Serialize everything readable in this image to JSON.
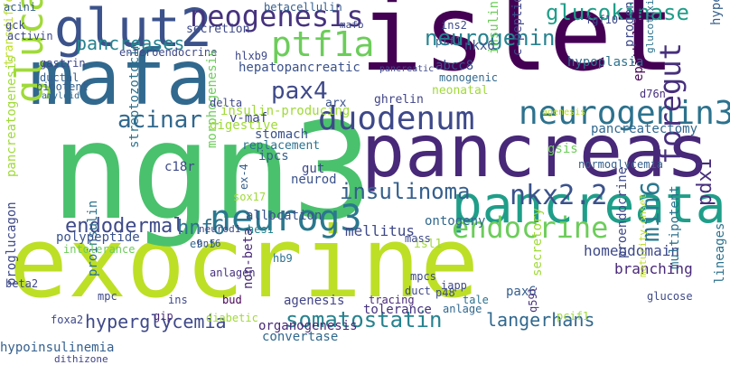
{
  "words": [
    {
      "text": "exocrine",
      "color": "#bddf26",
      "orientation": "h"
    },
    {
      "text": "ngn3",
      "color": "#4ac16d",
      "orientation": "h"
    },
    {
      "text": "islet",
      "color": "#440154",
      "orientation": "h"
    },
    {
      "text": "pancreas",
      "color": "#482878",
      "orientation": "h"
    },
    {
      "text": "mafa",
      "color": "#31688e",
      "orientation": "h"
    },
    {
      "text": "pancreata",
      "color": "#1f9e89",
      "orientation": "h"
    },
    {
      "text": "neurog3",
      "color": "#2a788e",
      "orientation": "h"
    },
    {
      "text": "glut2",
      "color": "#3b528b",
      "orientation": "h"
    },
    {
      "text": "glucagon",
      "color": "#a0da39",
      "orientation": "v"
    },
    {
      "text": "duodenum",
      "color": "#3e4989",
      "orientation": "h"
    },
    {
      "text": "neogenesis",
      "color": "#46327e",
      "orientation": "h"
    },
    {
      "text": "ptf1a",
      "color": "#6ccd5a",
      "orientation": "h"
    },
    {
      "text": "neurogenin3",
      "color": "#2c728e",
      "orientation": "h"
    },
    {
      "text": "endocrine",
      "color": "#6ccd5a",
      "orientation": "h"
    },
    {
      "text": "foregut",
      "color": "#472f7d",
      "orientation": "v"
    },
    {
      "text": "somatostatin",
      "color": "#26828e",
      "orientation": "h"
    },
    {
      "text": "insulinoma",
      "color": "#355f8d",
      "orientation": "h"
    },
    {
      "text": "nkx2.2",
      "color": "#3b528b",
      "orientation": "h"
    },
    {
      "text": "hyperglycemia",
      "color": "#3e4989",
      "orientation": "h"
    },
    {
      "text": "acinar",
      "color": "#31688e",
      "orientation": "h"
    },
    {
      "text": "endodermal",
      "color": "#3e4989",
      "orientation": "h"
    },
    {
      "text": "glucokinase",
      "color": "#1f9e89",
      "orientation": "h"
    },
    {
      "text": "pax4",
      "color": "#3e4989",
      "orientation": "h"
    },
    {
      "text": "langerhans",
      "color": "#31688e",
      "orientation": "h"
    },
    {
      "text": "neurogenin",
      "color": "#26828e",
      "orientation": "h"
    },
    {
      "text": "min6",
      "color": "#2a788e",
      "orientation": "v"
    },
    {
      "text": "hnf6",
      "color": "#2c728e",
      "orientation": "h"
    },
    {
      "text": "pancreases",
      "color": "#26828e",
      "orientation": "h"
    },
    {
      "text": "pdx1",
      "color": "#472f7d",
      "orientation": "v"
    },
    {
      "text": "pancreatectomy",
      "color": "#31688e",
      "orientation": "h"
    },
    {
      "text": "mellitus",
      "color": "#3e4989",
      "orientation": "h"
    },
    {
      "text": "organogenesis",
      "color": "#482878",
      "orientation": "h"
    },
    {
      "text": "homeodomain",
      "color": "#3e4989",
      "orientation": "h"
    },
    {
      "text": "branching",
      "color": "#482878",
      "orientation": "h"
    },
    {
      "text": "pax6",
      "color": "#355f8d",
      "orientation": "h"
    },
    {
      "text": "agenesis",
      "color": "#414487",
      "orientation": "h"
    },
    {
      "text": "insulin-producing",
      "color": "#a0da39",
      "orientation": "h"
    },
    {
      "text": "hepatopancreatic",
      "color": "#3b528b",
      "orientation": "h"
    },
    {
      "text": "enteroendocrine",
      "color": "#3e4989",
      "orientation": "h"
    },
    {
      "text": "pancreatogenesis",
      "color": "#a0da39",
      "orientation": "v"
    },
    {
      "text": "transdifferentiation",
      "color": "#bddf26",
      "orientation": "v"
    },
    {
      "text": "streptozotocin",
      "color": "#2c728e",
      "orientation": "v"
    },
    {
      "text": "morphogenesis",
      "color": "#6ccd5a",
      "orientation": "v"
    },
    {
      "text": "insulinotropic",
      "color": "#6ccd5a",
      "orientation": "v"
    },
    {
      "text": "proinsulin",
      "color": "#2c728e",
      "orientation": "v"
    },
    {
      "text": "proglucagon",
      "color": "#3e4989",
      "orientation": "v"
    },
    {
      "text": "polypeptide",
      "color": "#3b528b",
      "orientation": "h"
    },
    {
      "text": "hypoinsulinemia",
      "color": "#355f8d",
      "orientation": "h"
    },
    {
      "text": "dithizone",
      "color": "#414487",
      "orientation": "h"
    },
    {
      "text": "convertase",
      "color": "#31688e",
      "orientation": "h"
    },
    {
      "text": "tolerance",
      "color": "#46327e",
      "orientation": "h"
    },
    {
      "text": "tracing",
      "color": "#482878",
      "orientation": "h"
    },
    {
      "text": "allocation",
      "color": "#3b528b",
      "orientation": "h"
    },
    {
      "text": "ontogeny",
      "color": "#31688e",
      "orientation": "h"
    },
    {
      "text": "normoglycemia",
      "color": "#355f8d",
      "orientation": "h"
    },
    {
      "text": "c-peptide",
      "color": "#3e4989",
      "orientation": "v"
    },
    {
      "text": "progenitors",
      "color": "#3e4989",
      "orientation": "v"
    },
    {
      "text": "epithelium",
      "color": "#440154",
      "orientation": "v"
    },
    {
      "text": "glucotoxicity",
      "color": "#2c728e",
      "orientation": "v"
    },
    {
      "text": "hyperglycemic",
      "color": "#355f8d",
      "orientation": "v"
    },
    {
      "text": "lineages",
      "color": "#2c728e",
      "orientation": "v"
    },
    {
      "text": "proendocrine",
      "color": "#3e4989",
      "orientation": "v"
    },
    {
      "text": "multipotent",
      "color": "#2c728e",
      "orientation": "v"
    },
    {
      "text": "secretory",
      "color": "#a0da39",
      "orientation": "v"
    },
    {
      "text": "maturity-onset",
      "color": "#bddf26",
      "orientation": "v"
    },
    {
      "text": "non-beta",
      "color": "#482878",
      "orientation": "v"
    },
    {
      "text": "neonatal",
      "color": "#a0da39",
      "orientation": "h"
    },
    {
      "text": "ghrelin",
      "color": "#414487",
      "orientation": "h"
    },
    {
      "text": "digestive",
      "color": "#a0da39",
      "orientation": "h"
    },
    {
      "text": "v-maf",
      "color": "#3e4989",
      "orientation": "h"
    },
    {
      "text": "stomach",
      "color": "#3b528b",
      "orientation": "h"
    },
    {
      "text": "replacement",
      "color": "#2c728e",
      "orientation": "h"
    },
    {
      "text": "ipcs",
      "color": "#355f8d",
      "orientation": "h"
    },
    {
      "text": "gut",
      "color": "#3e4989",
      "orientation": "h"
    },
    {
      "text": "neurod",
      "color": "#3b528b",
      "orientation": "h"
    },
    {
      "text": "c18r",
      "color": "#3e4989",
      "orientation": "h"
    },
    {
      "text": "gsis",
      "color": "#6ccd5a",
      "orientation": "h"
    },
    {
      "text": "d76n",
      "color": "#472f7d",
      "orientation": "h"
    },
    {
      "text": "nkx6",
      "color": "#3b528b",
      "orientation": "h"
    },
    {
      "text": "abcc8",
      "color": "#3b528b",
      "orientation": "h"
    },
    {
      "text": "monogenic",
      "color": "#31688e",
      "orientation": "h"
    },
    {
      "text": "hypoplasia",
      "color": "#2c728e",
      "orientation": "h"
    },
    {
      "text": "hlxb9",
      "color": "#3e4989",
      "orientation": "h"
    },
    {
      "text": "arx",
      "color": "#3b528b",
      "orientation": "h"
    },
    {
      "text": "ptf1",
      "color": "#31688e",
      "orientation": "h"
    },
    {
      "text": "ins2",
      "color": "#3e4989",
      "orientation": "h"
    },
    {
      "text": "fgf10",
      "color": "#3e4989",
      "orientation": "h"
    },
    {
      "text": "secretion",
      "color": "#3e4989",
      "orientation": "h"
    },
    {
      "text": "betacellulin",
      "color": "#355f8d",
      "orientation": "h"
    },
    {
      "text": "mafb",
      "color": "#3e4989",
      "orientation": "h"
    },
    {
      "text": "gck",
      "color": "#3e4989",
      "orientation": "h"
    },
    {
      "text": "activin",
      "color": "#3e4989",
      "orientation": "h"
    },
    {
      "text": "acini",
      "color": "#355f8d",
      "orientation": "h"
    },
    {
      "text": "gastrin",
      "color": "#3e4989",
      "orientation": "h"
    },
    {
      "text": "ductal",
      "color": "#355f8d",
      "orientation": "h"
    },
    {
      "text": "bipotent",
      "color": "#355f8d",
      "orientation": "h"
    },
    {
      "text": "amyloid",
      "color": "#31688e",
      "orientation": "h"
    },
    {
      "text": "sox17",
      "color": "#a0da39",
      "orientation": "h"
    },
    {
      "text": "delta",
      "color": "#3e4989",
      "orientation": "h"
    },
    {
      "text": "intolerance",
      "color": "#6ccd5a",
      "orientation": "h"
    },
    {
      "text": "neurod1",
      "color": "#3e4989",
      "orientation": "h"
    },
    {
      "text": "hes1",
      "color": "#26828e",
      "orientation": "h"
    },
    {
      "text": "e9.5",
      "color": "#31688e",
      "orientation": "h"
    },
    {
      "text": "isl1",
      "color": "#a0da39",
      "orientation": "h"
    },
    {
      "text": "hb9",
      "color": "#2c728e",
      "orientation": "h"
    },
    {
      "text": "mpcs",
      "color": "#3e4989",
      "orientation": "h"
    },
    {
      "text": "p48",
      "color": "#3e4989",
      "orientation": "h"
    },
    {
      "text": "duct",
      "color": "#3e4989",
      "orientation": "h"
    },
    {
      "text": "anlagen",
      "color": "#46327e",
      "orientation": "h"
    },
    {
      "text": "iapp",
      "color": "#3e4989",
      "orientation": "h"
    },
    {
      "text": "bud",
      "color": "#440154",
      "orientation": "h"
    },
    {
      "text": "ins",
      "color": "#3e4989",
      "orientation": "h"
    },
    {
      "text": "gip",
      "color": "#482878",
      "orientation": "h"
    },
    {
      "text": "diabetic",
      "color": "#a0da39",
      "orientation": "h"
    },
    {
      "text": "anlage",
      "color": "#31688e",
      "orientation": "h"
    },
    {
      "text": "tale",
      "color": "#2c728e",
      "orientation": "h"
    },
    {
      "text": "pcif1",
      "color": "#a0da39",
      "orientation": "h"
    },
    {
      "text": "foxa2",
      "color": "#3e4989",
      "orientation": "h"
    },
    {
      "text": "glucose",
      "color": "#3e4989",
      "orientation": "h"
    },
    {
      "text": "mpc",
      "color": "#3e4989",
      "orientation": "h"
    },
    {
      "text": "ex-4",
      "color": "#355f8d",
      "orientation": "v"
    },
    {
      "text": "q59l",
      "color": "#472f7d",
      "orientation": "v"
    },
    {
      "text": "mass",
      "color": "#3e4989",
      "orientation": "h"
    },
    {
      "text": "hnf6",
      "color": "#3b528b",
      "orientation": "h"
    },
    {
      "text": "beta2",
      "color": "#3e4989",
      "orientation": "h"
    },
    {
      "text": "pancreatic",
      "color": "#3e4989",
      "orientation": "h"
    },
    {
      "text": "agenesis",
      "color": "#bddf26",
      "orientation": "h"
    }
  ]
}
